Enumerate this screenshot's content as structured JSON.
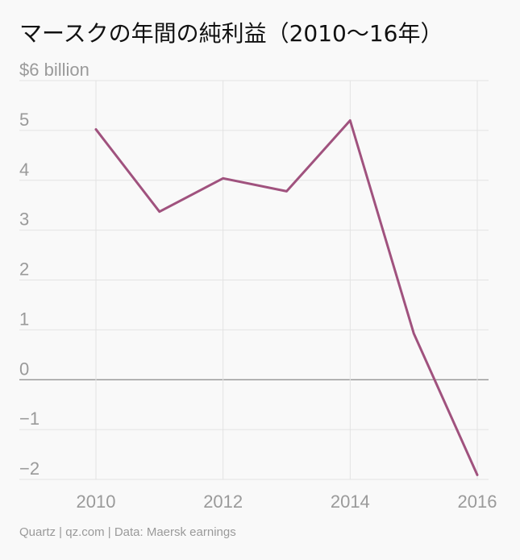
{
  "chart_data": {
    "type": "line",
    "title": "マースクの年間の純利益（2010〜16年）",
    "unit_label": "$6 billion",
    "x": [
      2010,
      2011,
      2012,
      2013,
      2014,
      2015,
      2016
    ],
    "series": [
      {
        "values": [
          5.02,
          3.37,
          4.04,
          3.78,
          5.2,
          0.93,
          -1.91
        ]
      }
    ],
    "xticks": [
      "2010",
      "2012",
      "2014",
      "2016"
    ],
    "xtick_values": [
      2010,
      2012,
      2014,
      2016
    ],
    "yticks": [
      "−2",
      "−1",
      "0",
      "1",
      "2",
      "3",
      "4",
      "5"
    ],
    "ytick_values": [
      -2,
      -1,
      0,
      1,
      2,
      3,
      4,
      5
    ],
    "xlim": [
      2009,
      2016.2
    ],
    "ylim": [
      -2,
      6
    ],
    "grid": true,
    "line_color": "#a0527e",
    "source": "Quartz | qz.com | Data: Maersk earnings"
  }
}
